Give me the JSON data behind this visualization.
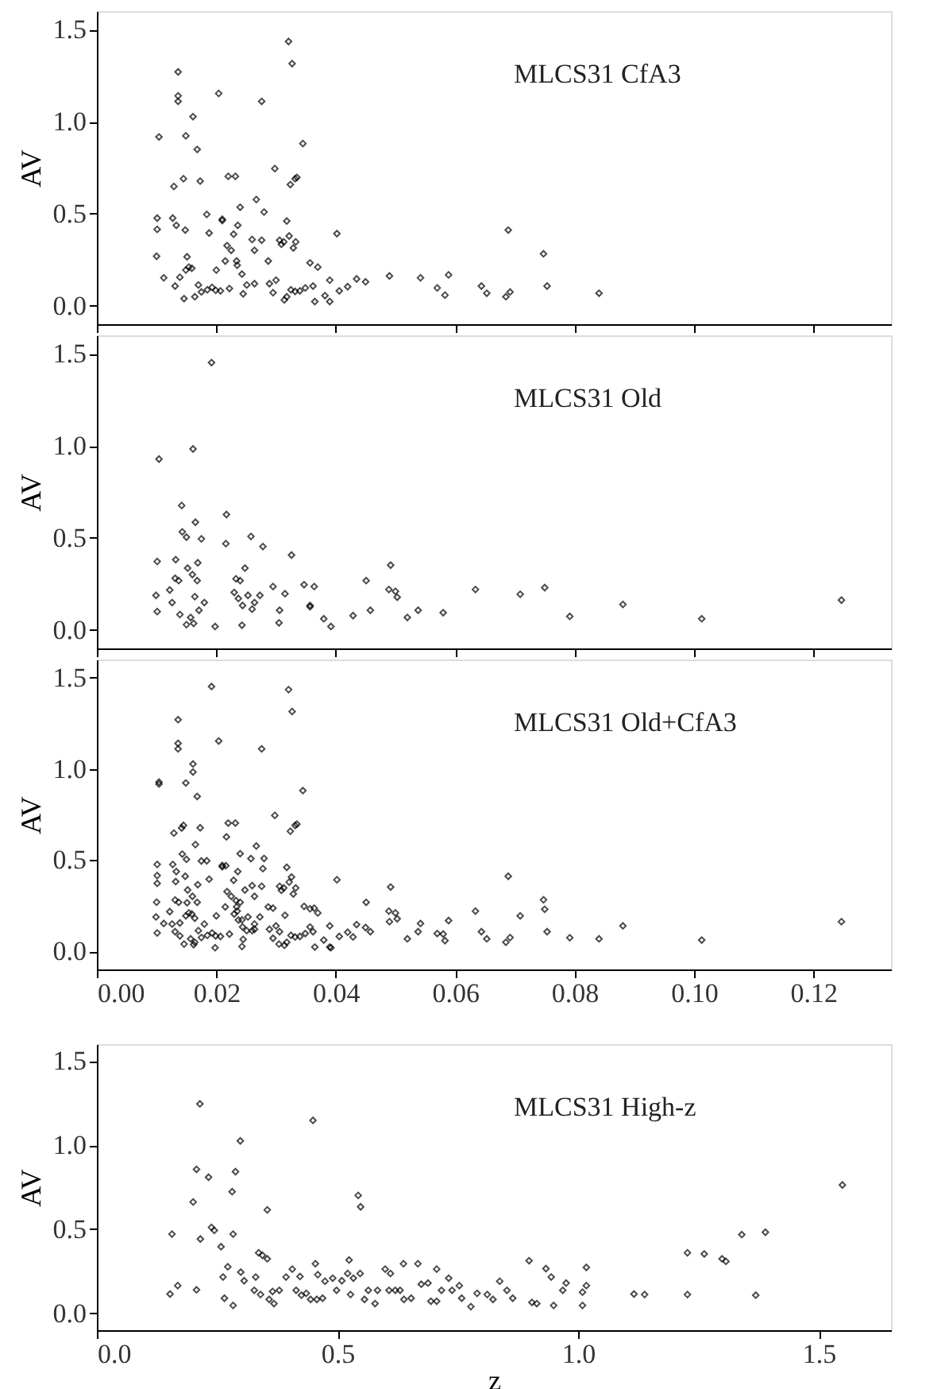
{
  "chart_data": [
    {
      "type": "scatter",
      "title": "MLCS31 CfA3",
      "ylabel": "AV",
      "xlim": [
        0,
        0.133
      ],
      "ylim": [
        -0.1,
        1.6
      ],
      "tick_labels": "y",
      "marker": "diamond",
      "xticks": [
        {
          "value": 0,
          "label": null
        },
        {
          "value": 0.02,
          "label": null
        },
        {
          "value": 0.04,
          "label": null
        },
        {
          "value": 0.06,
          "label": null
        },
        {
          "value": 0.08,
          "label": null
        },
        {
          "value": 0.1,
          "label": null
        },
        {
          "value": 0.12,
          "label": null
        }
      ],
      "yticks": [
        {
          "value": 0,
          "label": "0.0"
        },
        {
          "value": 0.5,
          "label": "0.5"
        },
        {
          "value": 1,
          "label": "1.0"
        },
        {
          "value": 1.5,
          "label": "1.5"
        }
      ],
      "series": [
        {
          "type": "scatter",
          "color": "#000000",
          "x": [
            0.0104,
            0.0101,
            0.0101,
            0.01,
            0.0112,
            0.0129,
            0.0127,
            0.0133,
            0.0136,
            0.0136,
            0.0136,
            0.0131,
            0.0139,
            0.0145,
            0.0149,
            0.0148,
            0.0151,
            0.0146,
            0.0149,
            0.0154,
            0.0159,
            0.0161,
            0.0168,
            0.0173,
            0.0164,
            0.017,
            0.0175,
            0.0184,
            0.0188,
            0.0185,
            0.0193,
            0.0199,
            0.0204,
            0.02,
            0.0207,
            0.021,
            0.021,
            0.0215,
            0.0218,
            0.022,
            0.0225,
            0.0222,
            0.0229,
            0.0232,
            0.0234,
            0.0236,
            0.024,
            0.0235,
            0.0243,
            0.0245,
            0.0251,
            0.026,
            0.0267,
            0.0264,
            0.0264,
            0.0276,
            0.0276,
            0.028,
            0.0287,
            0.0289,
            0.0295,
            0.0298,
            0.03,
            0.0306,
            0.0309,
            0.0313,
            0.0314,
            0.0318,
            0.0318,
            0.0321,
            0.0327,
            0.0322,
            0.0324,
            0.0332,
            0.0335,
            0.0329,
            0.0333,
            0.0325,
            0.0332,
            0.0345,
            0.034,
            0.0349,
            0.0357,
            0.0362,
            0.0365,
            0.037,
            0.0382,
            0.039,
            0.039,
            0.0402,
            0.0406,
            0.042,
            0.0435,
            0.045,
            0.049,
            0.0542,
            0.057,
            0.0583,
            0.0589,
            0.0644,
            0.0653,
            0.0685,
            0.0689,
            0.0692,
            0.0748,
            0.0754,
            0.0841
          ],
          "values": [
            0.917,
            0.476,
            0.415,
            0.269,
            0.152,
            0.648,
            0.476,
            0.437,
            1.27,
            1.14,
            1.11,
            0.107,
            0.155,
            0.69,
            0.923,
            0.411,
            0.266,
            0.039,
            0.194,
            0.21,
            0.204,
            1.027,
            0.849,
            0.677,
            0.049,
            0.113,
            0.075,
            0.496,
            0.395,
            0.087,
            0.1,
            0.084,
            1.153,
            0.194,
            0.081,
            0.47,
            0.463,
            0.243,
            0.327,
            0.703,
            0.301,
            0.094,
            0.389,
            0.703,
            0.243,
            0.437,
            0.535,
            0.22,
            0.172,
            0.065,
            0.113,
            0.36,
            0.577,
            0.301,
            0.12,
            1.11,
            0.356,
            0.509,
            0.243,
            0.12,
            0.071,
            0.745,
            0.139,
            0.356,
            0.334,
            0.347,
            0.032,
            0.049,
            0.46,
            1.435,
            1.315,
            0.379,
            0.658,
            0.69,
            0.697,
            0.314,
            0.347,
            0.087,
            0.078,
            0.881,
            0.081,
            0.097,
            0.233,
            0.107,
            0.023,
            0.21,
            0.055,
            0.023,
            0.139,
            0.392,
            0.081,
            0.104,
            0.146,
            0.13,
            0.162,
            0.152,
            0.097,
            0.058,
            0.168,
            0.107,
            0.068,
            0.049,
            0.411,
            0.075,
            0.282,
            0.107,
            0.068
          ]
        }
      ]
    },
    {
      "type": "scatter",
      "title": "MLCS31 Old",
      "ylabel": "AV",
      "xlim": [
        0,
        0.133
      ],
      "ylim": [
        -0.1,
        1.6
      ],
      "tick_labels": "y",
      "marker": "diamond",
      "xticks": [
        {
          "value": 0,
          "label": null
        },
        {
          "value": 0.02,
          "label": null
        },
        {
          "value": 0.04,
          "label": null
        },
        {
          "value": 0.06,
          "label": null
        },
        {
          "value": 0.08,
          "label": null
        },
        {
          "value": 0.1,
          "label": null
        },
        {
          "value": 0.12,
          "label": null
        }
      ],
      "yticks": [
        {
          "value": 0,
          "label": "0.0"
        },
        {
          "value": 0.5,
          "label": "0.5"
        },
        {
          "value": 1,
          "label": "1.0"
        },
        {
          "value": 1.5,
          "label": "1.5"
        }
      ],
      "series": [
        {
          "type": "scatter",
          "color": "#000000",
          "x": [
            0.0104,
            0.0101,
            0.0099,
            0.0101,
            0.0122,
            0.0126,
            0.0132,
            0.0131,
            0.0137,
            0.0139,
            0.0142,
            0.0143,
            0.015,
            0.015,
            0.0152,
            0.0157,
            0.0161,
            0.0162,
            0.016,
            0.0165,
            0.0169,
            0.0164,
            0.0168,
            0.0171,
            0.0175,
            0.018,
            0.0192,
            0.0198,
            0.0217,
            0.0216,
            0.023,
            0.0233,
            0.024,
            0.0237,
            0.0243,
            0.0244,
            0.0248,
            0.0253,
            0.0258,
            0.026,
            0.0264,
            0.0273,
            0.0278,
            0.0295,
            0.0306,
            0.0305,
            0.0315,
            0.0326,
            0.0347,
            0.0357,
            0.0357,
            0.0364,
            0.038,
            0.0392,
            0.0429,
            0.0451,
            0.0458,
            0.0489,
            0.0492,
            0.05,
            0.0503,
            0.052,
            0.0538,
            0.058,
            0.0634,
            0.0709,
            0.075,
            0.0792,
            0.0881,
            0.1013,
            0.1247
          ],
          "values": [
            0.928,
            0.372,
            0.188,
            0.1,
            0.217,
            0.149,
            0.382,
            0.281,
            0.268,
            0.084,
            0.676,
            0.533,
            0.504,
            0.029,
            0.336,
            0.068,
            0.983,
            0.036,
            0.301,
            0.585,
            0.365,
            0.181,
            0.268,
            0.107,
            0.495,
            0.149,
            1.452,
            0.019,
            0.627,
            0.469,
            0.204,
            0.278,
            0.268,
            0.171,
            0.026,
            0.133,
            0.336,
            0.188,
            0.508,
            0.113,
            0.149,
            0.188,
            0.453,
            0.236,
            0.107,
            0.039,
            0.197,
            0.407,
            0.246,
            0.133,
            0.126,
            0.236,
            0.061,
            0.019,
            0.078,
            0.268,
            0.107,
            0.22,
            0.352,
            0.21,
            0.178,
            0.068,
            0.107,
            0.094,
            0.22,
            0.194,
            0.23,
            0.074,
            0.139,
            0.061,
            0.162
          ]
        }
      ]
    },
    {
      "type": "scatter",
      "title": "MLCS31 Old+CfA3",
      "ylabel": "AV",
      "xlim": [
        0,
        0.133
      ],
      "ylim": [
        -0.1,
        1.6
      ],
      "marker": "diamond",
      "xticks": [
        {
          "value": 0,
          "label": "0.00"
        },
        {
          "value": 0.02,
          "label": "0.02"
        },
        {
          "value": 0.04,
          "label": "0.04"
        },
        {
          "value": 0.06,
          "label": "0.06"
        },
        {
          "value": 0.08,
          "label": "0.08"
        },
        {
          "value": 0.1,
          "label": "0.10"
        },
        {
          "value": 0.12,
          "label": "0.12"
        }
      ],
      "yticks": [
        {
          "value": 0,
          "label": "0.0"
        },
        {
          "value": 0.5,
          "label": "0.5"
        },
        {
          "value": 1,
          "label": "1.0"
        },
        {
          "value": 1.5,
          "label": "1.5"
        }
      ],
      "series": [
        {
          "type": "scatter",
          "color": "#000000",
          "x": [
            0.0104,
            0.0101,
            0.0101,
            0.01,
            0.0112,
            0.0129,
            0.0127,
            0.0133,
            0.0136,
            0.0136,
            0.0136,
            0.0131,
            0.0139,
            0.0145,
            0.0149,
            0.0148,
            0.0151,
            0.0146,
            0.0149,
            0.0154,
            0.0159,
            0.0161,
            0.0168,
            0.0173,
            0.0164,
            0.017,
            0.0175,
            0.0184,
            0.0188,
            0.0185,
            0.0193,
            0.0199,
            0.0204,
            0.02,
            0.0207,
            0.021,
            0.021,
            0.0215,
            0.0218,
            0.022,
            0.0225,
            0.0222,
            0.0229,
            0.0232,
            0.0234,
            0.0236,
            0.024,
            0.0235,
            0.0243,
            0.0245,
            0.0251,
            0.026,
            0.0267,
            0.0264,
            0.0264,
            0.0276,
            0.0276,
            0.028,
            0.0287,
            0.0289,
            0.0295,
            0.0298,
            0.03,
            0.0306,
            0.0309,
            0.0313,
            0.0314,
            0.0318,
            0.0318,
            0.0321,
            0.0327,
            0.0322,
            0.0324,
            0.0332,
            0.0335,
            0.0329,
            0.0333,
            0.0325,
            0.0332,
            0.0345,
            0.034,
            0.0349,
            0.0357,
            0.0362,
            0.0365,
            0.037,
            0.039,
            0.039,
            0.0402,
            0.0406,
            0.042,
            0.0435,
            0.045,
            0.049,
            0.0542,
            0.057,
            0.0583,
            0.0589,
            0.0644,
            0.0653,
            0.0685,
            0.0689,
            0.0692,
            0.0748,
            0.0754,
            0.0841,
            0.0104,
            0.0101,
            0.0099,
            0.0101,
            0.0122,
            0.0126,
            0.0132,
            0.0131,
            0.0137,
            0.0139,
            0.0142,
            0.0143,
            0.015,
            0.0152,
            0.0157,
            0.0161,
            0.0162,
            0.016,
            0.0165,
            0.0169,
            0.0164,
            0.0168,
            0.0175,
            0.018,
            0.0192,
            0.0198,
            0.0217,
            0.0216,
            0.023,
            0.0233,
            0.024,
            0.0237,
            0.0243,
            0.0244,
            0.0248,
            0.0253,
            0.0258,
            0.026,
            0.0264,
            0.0273,
            0.0278,
            0.0295,
            0.0306,
            0.0305,
            0.0315,
            0.0326,
            0.0347,
            0.0357,
            0.0364,
            0.038,
            0.0392,
            0.0429,
            0.0451,
            0.0458,
            0.0489,
            0.0492,
            0.05,
            0.0503,
            0.052,
            0.0538,
            0.058,
            0.0634,
            0.0709,
            0.075,
            0.0792,
            0.0881,
            0.1013,
            0.1247
          ],
          "values": [
            0.917,
            0.476,
            0.415,
            0.269,
            0.152,
            0.648,
            0.476,
            0.437,
            1.27,
            1.14,
            1.11,
            0.107,
            0.155,
            0.69,
            0.923,
            0.411,
            0.266,
            0.039,
            0.194,
            0.21,
            0.204,
            1.027,
            0.849,
            0.677,
            0.049,
            0.113,
            0.075,
            0.496,
            0.395,
            0.087,
            0.1,
            0.084,
            1.153,
            0.194,
            0.081,
            0.47,
            0.463,
            0.243,
            0.327,
            0.703,
            0.301,
            0.094,
            0.389,
            0.703,
            0.243,
            0.437,
            0.535,
            0.22,
            0.172,
            0.065,
            0.113,
            0.36,
            0.577,
            0.301,
            0.12,
            1.11,
            0.356,
            0.509,
            0.243,
            0.12,
            0.071,
            0.745,
            0.139,
            0.356,
            0.334,
            0.347,
            0.032,
            0.049,
            0.46,
            1.435,
            1.315,
            0.379,
            0.658,
            0.69,
            0.697,
            0.314,
            0.347,
            0.087,
            0.078,
            0.881,
            0.081,
            0.097,
            0.233,
            0.107,
            0.023,
            0.21,
            0.023,
            0.139,
            0.392,
            0.081,
            0.104,
            0.146,
            0.13,
            0.162,
            0.152,
            0.097,
            0.058,
            0.168,
            0.107,
            0.068,
            0.049,
            0.411,
            0.075,
            0.282,
            0.107,
            0.068,
            0.928,
            0.372,
            0.188,
            0.1,
            0.217,
            0.149,
            0.382,
            0.281,
            0.268,
            0.084,
            0.676,
            0.533,
            0.504,
            0.336,
            0.068,
            0.983,
            0.036,
            0.301,
            0.585,
            0.365,
            0.181,
            0.268,
            0.495,
            0.149,
            1.452,
            0.019,
            0.627,
            0.469,
            0.204,
            0.278,
            0.268,
            0.171,
            0.026,
            0.133,
            0.336,
            0.188,
            0.508,
            0.113,
            0.149,
            0.188,
            0.453,
            0.236,
            0.107,
            0.039,
            0.197,
            0.407,
            0.246,
            0.133,
            0.236,
            0.061,
            0.019,
            0.078,
            0.268,
            0.107,
            0.22,
            0.352,
            0.21,
            0.178,
            0.068,
            0.107,
            0.094,
            0.22,
            0.194,
            0.23,
            0.074,
            0.139,
            0.061,
            0.162
          ]
        }
      ]
    },
    {
      "type": "scatter",
      "title": "MLCS31 High-z",
      "ylabel": "AV",
      "xlabel": "z",
      "xlim": [
        0,
        1.65
      ],
      "ylim": [
        -0.1,
        1.6
      ],
      "marker": "diamond",
      "xticks": [
        {
          "value": 0,
          "label": "0.0"
        },
        {
          "value": 0.5,
          "label": "0.5"
        },
        {
          "value": 1,
          "label": "1.0"
        },
        {
          "value": 1.5,
          "label": "1.5"
        }
      ],
      "yticks": [
        {
          "value": 0,
          "label": "0.0"
        },
        {
          "value": 0.5,
          "label": "0.5"
        },
        {
          "value": 1,
          "label": "1.0"
        },
        {
          "value": 1.5,
          "label": "1.5"
        }
      ],
      "series": [
        {
          "type": "scatter",
          "color": "#000000",
          "x": [
            0.152,
            0.156,
            0.168,
            0.2,
            0.207,
            0.207,
            0.214,
            0.215,
            0.232,
            0.238,
            0.244,
            0.258,
            0.262,
            0.265,
            0.272,
            0.281,
            0.283,
            0.283,
            0.288,
            0.298,
            0.299,
            0.306,
            0.327,
            0.33,
            0.336,
            0.34,
            0.344,
            0.354,
            0.354,
            0.358,
            0.365,
            0.368,
            0.379,
            0.393,
            0.406,
            0.414,
            0.422,
            0.425,
            0.435,
            0.444,
            0.449,
            0.454,
            0.459,
            0.457,
            0.469,
            0.474,
            0.49,
            0.498,
            0.509,
            0.521,
            0.524,
            0.527,
            0.533,
            0.543,
            0.548,
            0.547,
            0.556,
            0.564,
            0.578,
            0.583,
            0.599,
            0.607,
            0.61,
            0.62,
            0.63,
            0.637,
            0.638,
            0.653,
            0.667,
            0.674,
            0.688,
            0.694,
            0.706,
            0.706,
            0.716,
            0.731,
            0.738,
            0.753,
            0.758,
            0.777,
            0.79,
            0.811,
            0.823,
            0.837,
            0.852,
            0.864,
            0.898,
            0.904,
            0.914,
            0.933,
            0.944,
            0.949,
            0.968,
            0.975,
            1.009,
            1.009,
            1.017,
            1.017,
            1.116,
            1.138,
            1.227,
            1.227,
            1.262,
            1.299,
            1.307,
            1.34,
            1.369,
            1.389,
            1.549
          ],
          "values": [
            0.115,
            0.471,
            0.165,
            0.662,
            0.856,
            0.14,
            1.245,
            0.442,
            0.809,
            0.511,
            0.493,
            0.396,
            0.216,
            0.09,
            0.277,
            0.723,
            0.471,
            0.047,
            0.842,
            1.025,
            0.245,
            0.194,
            0.137,
            0.216,
            0.36,
            0.112,
            0.345,
            0.324,
            0.615,
            0.083,
            0.13,
            0.058,
            0.137,
            0.216,
            0.263,
            0.137,
            0.219,
            0.108,
            0.119,
            0.083,
            1.147,
            0.295,
            0.23,
            0.083,
            0.09,
            0.191,
            0.209,
            0.137,
            0.194,
            0.237,
            0.317,
            0.112,
            0.209,
            0.701,
            0.633,
            0.237,
            0.083,
            0.137,
            0.058,
            0.137,
            0.263,
            0.137,
            0.237,
            0.137,
            0.137,
            0.295,
            0.083,
            0.09,
            0.295,
            0.173,
            0.18,
            0.072,
            0.263,
            0.072,
            0.137,
            0.209,
            0.137,
            0.165,
            0.09,
            0.04,
            0.119,
            0.112,
            0.083,
            0.191,
            0.137,
            0.09,
            0.313,
            0.065,
            0.058,
            0.266,
            0.216,
            0.047,
            0.137,
            0.18,
            0.047,
            0.126,
            0.273,
            0.165,
            0.115,
            0.112,
            0.36,
            0.112,
            0.353,
            0.324,
            0.309,
            0.468,
            0.108,
            0.482,
            0.763
          ]
        }
      ]
    }
  ]
}
